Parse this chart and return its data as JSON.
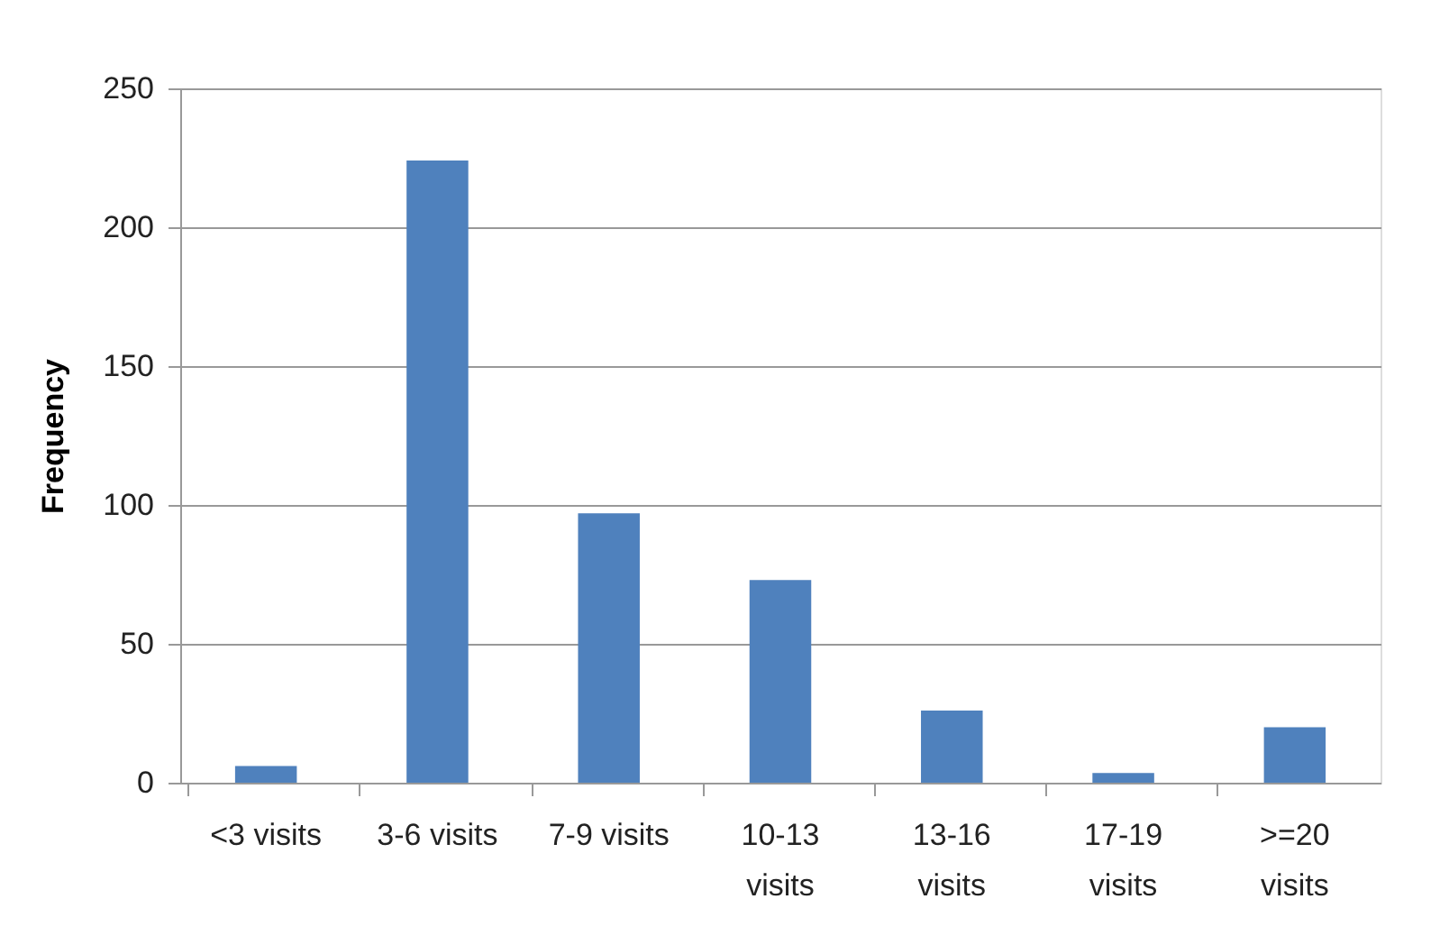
{
  "chart_data": {
    "type": "bar",
    "ylabel": "Frequency",
    "categories": [
      "<3 visits",
      "3-6 visits",
      "7-9 visits",
      "10-13 visits",
      "13-16 visits",
      "17-19 visits",
      ">=20 visits"
    ],
    "values": [
      6,
      224,
      97,
      73,
      26,
      3.5,
      20
    ],
    "color": "#4f81bd",
    "ylim": [
      0,
      250
    ],
    "yticks": [
      0,
      50,
      100,
      150,
      200,
      250
    ],
    "grid": "y"
  }
}
